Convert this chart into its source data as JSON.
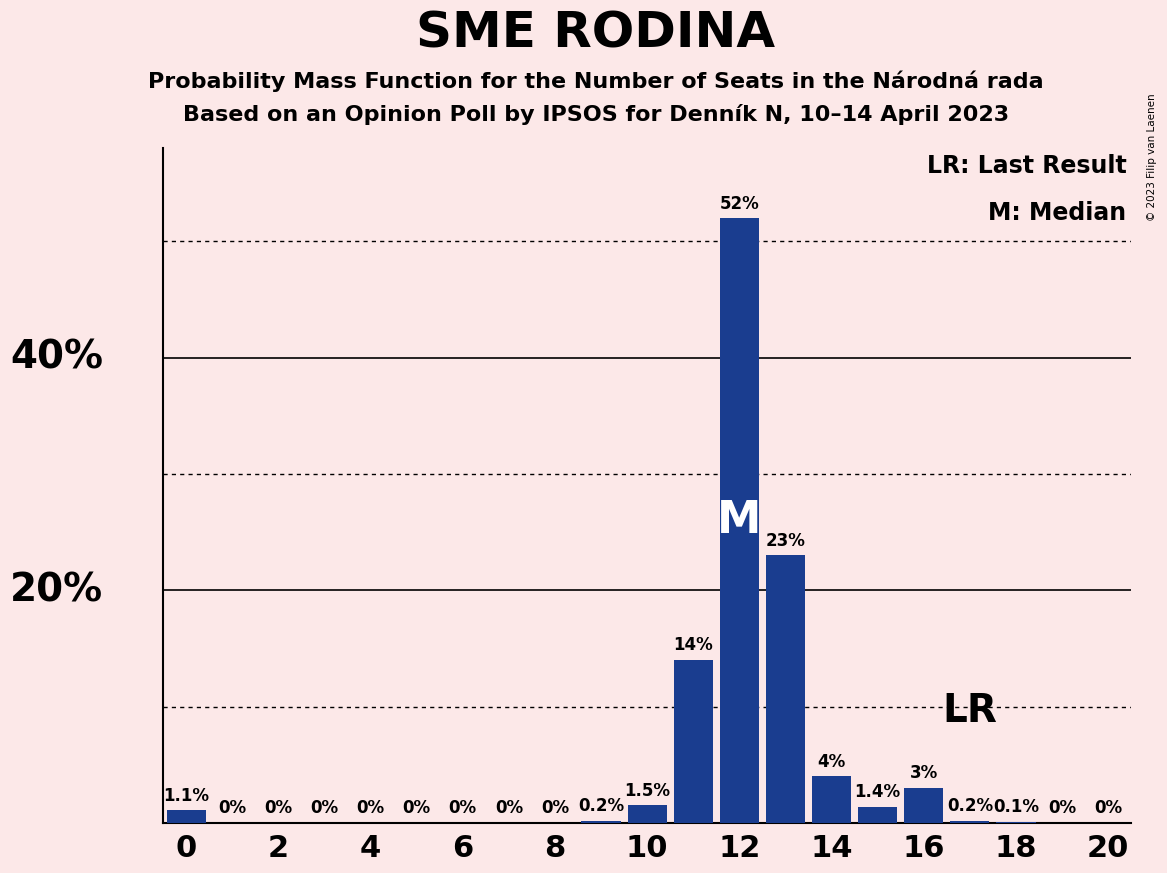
{
  "title": "SME RODINA",
  "subtitle1": "Probability Mass Function for the Number of Seats in the Národná rada",
  "subtitle2": "Based on an Opinion Poll by IPSOS for Denník N, 10–14 April 2023",
  "copyright": "© 2023 Filip van Laenen",
  "seats": [
    0,
    1,
    2,
    3,
    4,
    5,
    6,
    7,
    8,
    9,
    10,
    11,
    12,
    13,
    14,
    15,
    16,
    17,
    18,
    19,
    20
  ],
  "probabilities": [
    1.1,
    0,
    0,
    0,
    0,
    0,
    0,
    0,
    0,
    0.2,
    1.5,
    14,
    52,
    23,
    4,
    1.4,
    3,
    0.2,
    0.1,
    0,
    0
  ],
  "bar_color": "#1a3d8f",
  "background_color": "#fce8e8",
  "median_seat": 12,
  "last_result_seat": 17,
  "xlim": [
    -0.5,
    20.5
  ],
  "ylim": [
    0,
    58
  ],
  "solid_yticks": [
    20,
    40
  ],
  "dotted_yticks": [
    10,
    30,
    50
  ],
  "xticks": [
    0,
    2,
    4,
    6,
    8,
    10,
    12,
    14,
    16,
    18,
    20
  ],
  "title_fontsize": 36,
  "subtitle_fontsize": 16,
  "axis_tick_fontsize": 22,
  "bar_label_fontsize": 12,
  "legend_fontsize": 17,
  "ytick_label_fontsize": 28,
  "annotation_fontsize_M": 32,
  "annotation_fontsize_LR": 28
}
